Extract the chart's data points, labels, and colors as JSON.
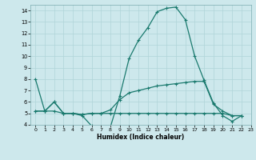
{
  "xlabel": "Humidex (Indice chaleur)",
  "xlim": [
    -0.5,
    23
  ],
  "ylim": [
    4,
    14.5
  ],
  "yticks": [
    4,
    5,
    6,
    7,
    8,
    9,
    10,
    11,
    12,
    13,
    14
  ],
  "xticks": [
    0,
    1,
    2,
    3,
    4,
    5,
    6,
    7,
    8,
    9,
    10,
    11,
    12,
    13,
    14,
    15,
    16,
    17,
    18,
    19,
    20,
    21,
    22,
    23
  ],
  "bg_color": "#cde8ec",
  "grid_color": "#b0d4d8",
  "line_color": "#1a7a6e",
  "line1_x": [
    0,
    1,
    2,
    3,
    4,
    5,
    6,
    7,
    8,
    9,
    10,
    11,
    12,
    13,
    14,
    15,
    16,
    17,
    18,
    19,
    20,
    21,
    22
  ],
  "line1_y": [
    8.0,
    5.2,
    6.0,
    5.0,
    5.0,
    4.8,
    3.9,
    3.8,
    3.8,
    6.5,
    9.8,
    11.4,
    12.5,
    13.9,
    14.2,
    14.3,
    13.2,
    10.0,
    7.9,
    5.9,
    4.8,
    4.3,
    4.8
  ],
  "line2_x": [
    0,
    1,
    2,
    3,
    4,
    5,
    6,
    7,
    8,
    9,
    10,
    11,
    12,
    13,
    14,
    15,
    16,
    17,
    18,
    19,
    20,
    21,
    22
  ],
  "line2_y": [
    5.2,
    5.2,
    6.0,
    5.0,
    5.0,
    4.9,
    5.0,
    5.0,
    5.3,
    6.2,
    6.8,
    7.0,
    7.2,
    7.4,
    7.5,
    7.6,
    7.7,
    7.8,
    7.8,
    5.8,
    5.2,
    4.8,
    4.8
  ],
  "line3_x": [
    0,
    1,
    2,
    3,
    4,
    5,
    6,
    7,
    8,
    9,
    10,
    11,
    12,
    13,
    14,
    15,
    16,
    17,
    18,
    19,
    20,
    21,
    22
  ],
  "line3_y": [
    5.2,
    5.2,
    5.2,
    5.0,
    5.0,
    4.9,
    5.0,
    5.0,
    5.0,
    5.0,
    5.0,
    5.0,
    5.0,
    5.0,
    5.0,
    5.0,
    5.0,
    5.0,
    5.0,
    5.0,
    5.0,
    4.8,
    4.8
  ]
}
